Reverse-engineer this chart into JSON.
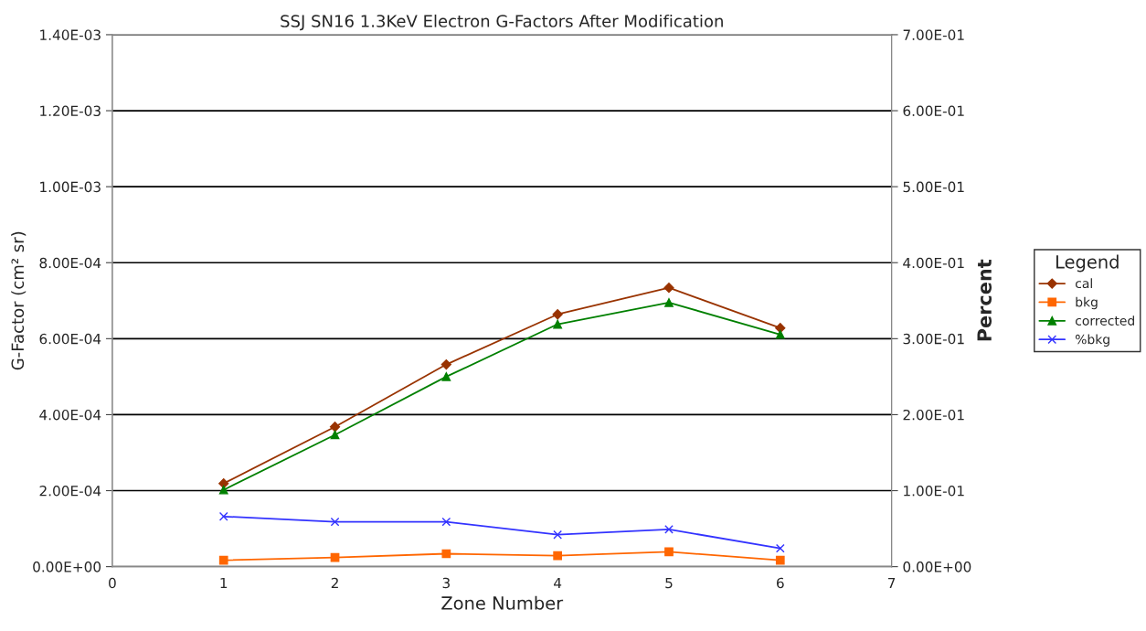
{
  "chart_data": {
    "type": "line",
    "title": "SSJ SN16 1.3KeV Electron G-Factors After Modification",
    "xlabel": "Zone Number",
    "ylabel": "G-Factor (cm² sr)",
    "y2label": "Percent",
    "legend_title": "Legend",
    "legend": "right",
    "grid": "y",
    "x": [
      1,
      2,
      3,
      4,
      5,
      6
    ],
    "series": [
      {
        "name": "cal",
        "color": "#993300",
        "marker": "diamond",
        "values": [
          0.000219,
          0.000368,
          0.000532,
          0.000664,
          0.000734,
          0.000628
        ]
      },
      {
        "name": "bkg",
        "color": "#ff6600",
        "marker": "square",
        "values": [
          1.7e-05,
          2.4e-05,
          3.4e-05,
          2.9e-05,
          3.9e-05,
          1.7e-05
        ]
      },
      {
        "name": "corrected",
        "color": "#008000",
        "marker": "triangle",
        "values": [
          0.000202,
          0.000347,
          0.0005,
          0.000638,
          0.000695,
          0.000611
        ]
      },
      {
        "name": "%bkg",
        "color": "#3333ff",
        "marker": "cross",
        "axis": "y2",
        "values": [
          0.066,
          0.059,
          0.059,
          0.042,
          0.049,
          0.024
        ]
      }
    ],
    "xlim": [
      0,
      7
    ],
    "xticks": [
      0,
      1,
      2,
      3,
      4,
      5,
      6,
      7
    ],
    "ylim": [
      0,
      0.0014
    ],
    "yticks": [
      {
        "value": 0,
        "label": "0.00E+00"
      },
      {
        "value": 0.0002,
        "label": "2.00E-04"
      },
      {
        "value": 0.0004,
        "label": "4.00E-04"
      },
      {
        "value": 0.0006,
        "label": "6.00E-04"
      },
      {
        "value": 0.0008,
        "label": "8.00E-04"
      },
      {
        "value": 0.001,
        "label": "1.00E-03"
      },
      {
        "value": 0.0012,
        "label": "1.20E-03"
      },
      {
        "value": 0.0014,
        "label": "1.40E-03"
      }
    ],
    "y2lim": [
      0,
      0.7
    ],
    "y2ticks": [
      {
        "value": 0,
        "label": "0.00E+00"
      },
      {
        "value": 0.1,
        "label": "1.00E-01"
      },
      {
        "value": 0.2,
        "label": "2.00E-01"
      },
      {
        "value": 0.3,
        "label": "3.00E-01"
      },
      {
        "value": 0.4,
        "label": "4.00E-01"
      },
      {
        "value": 0.5,
        "label": "5.00E-01"
      },
      {
        "value": 0.6,
        "label": "6.00E-01"
      },
      {
        "value": 0.7,
        "label": "7.00E-01"
      }
    ]
  }
}
